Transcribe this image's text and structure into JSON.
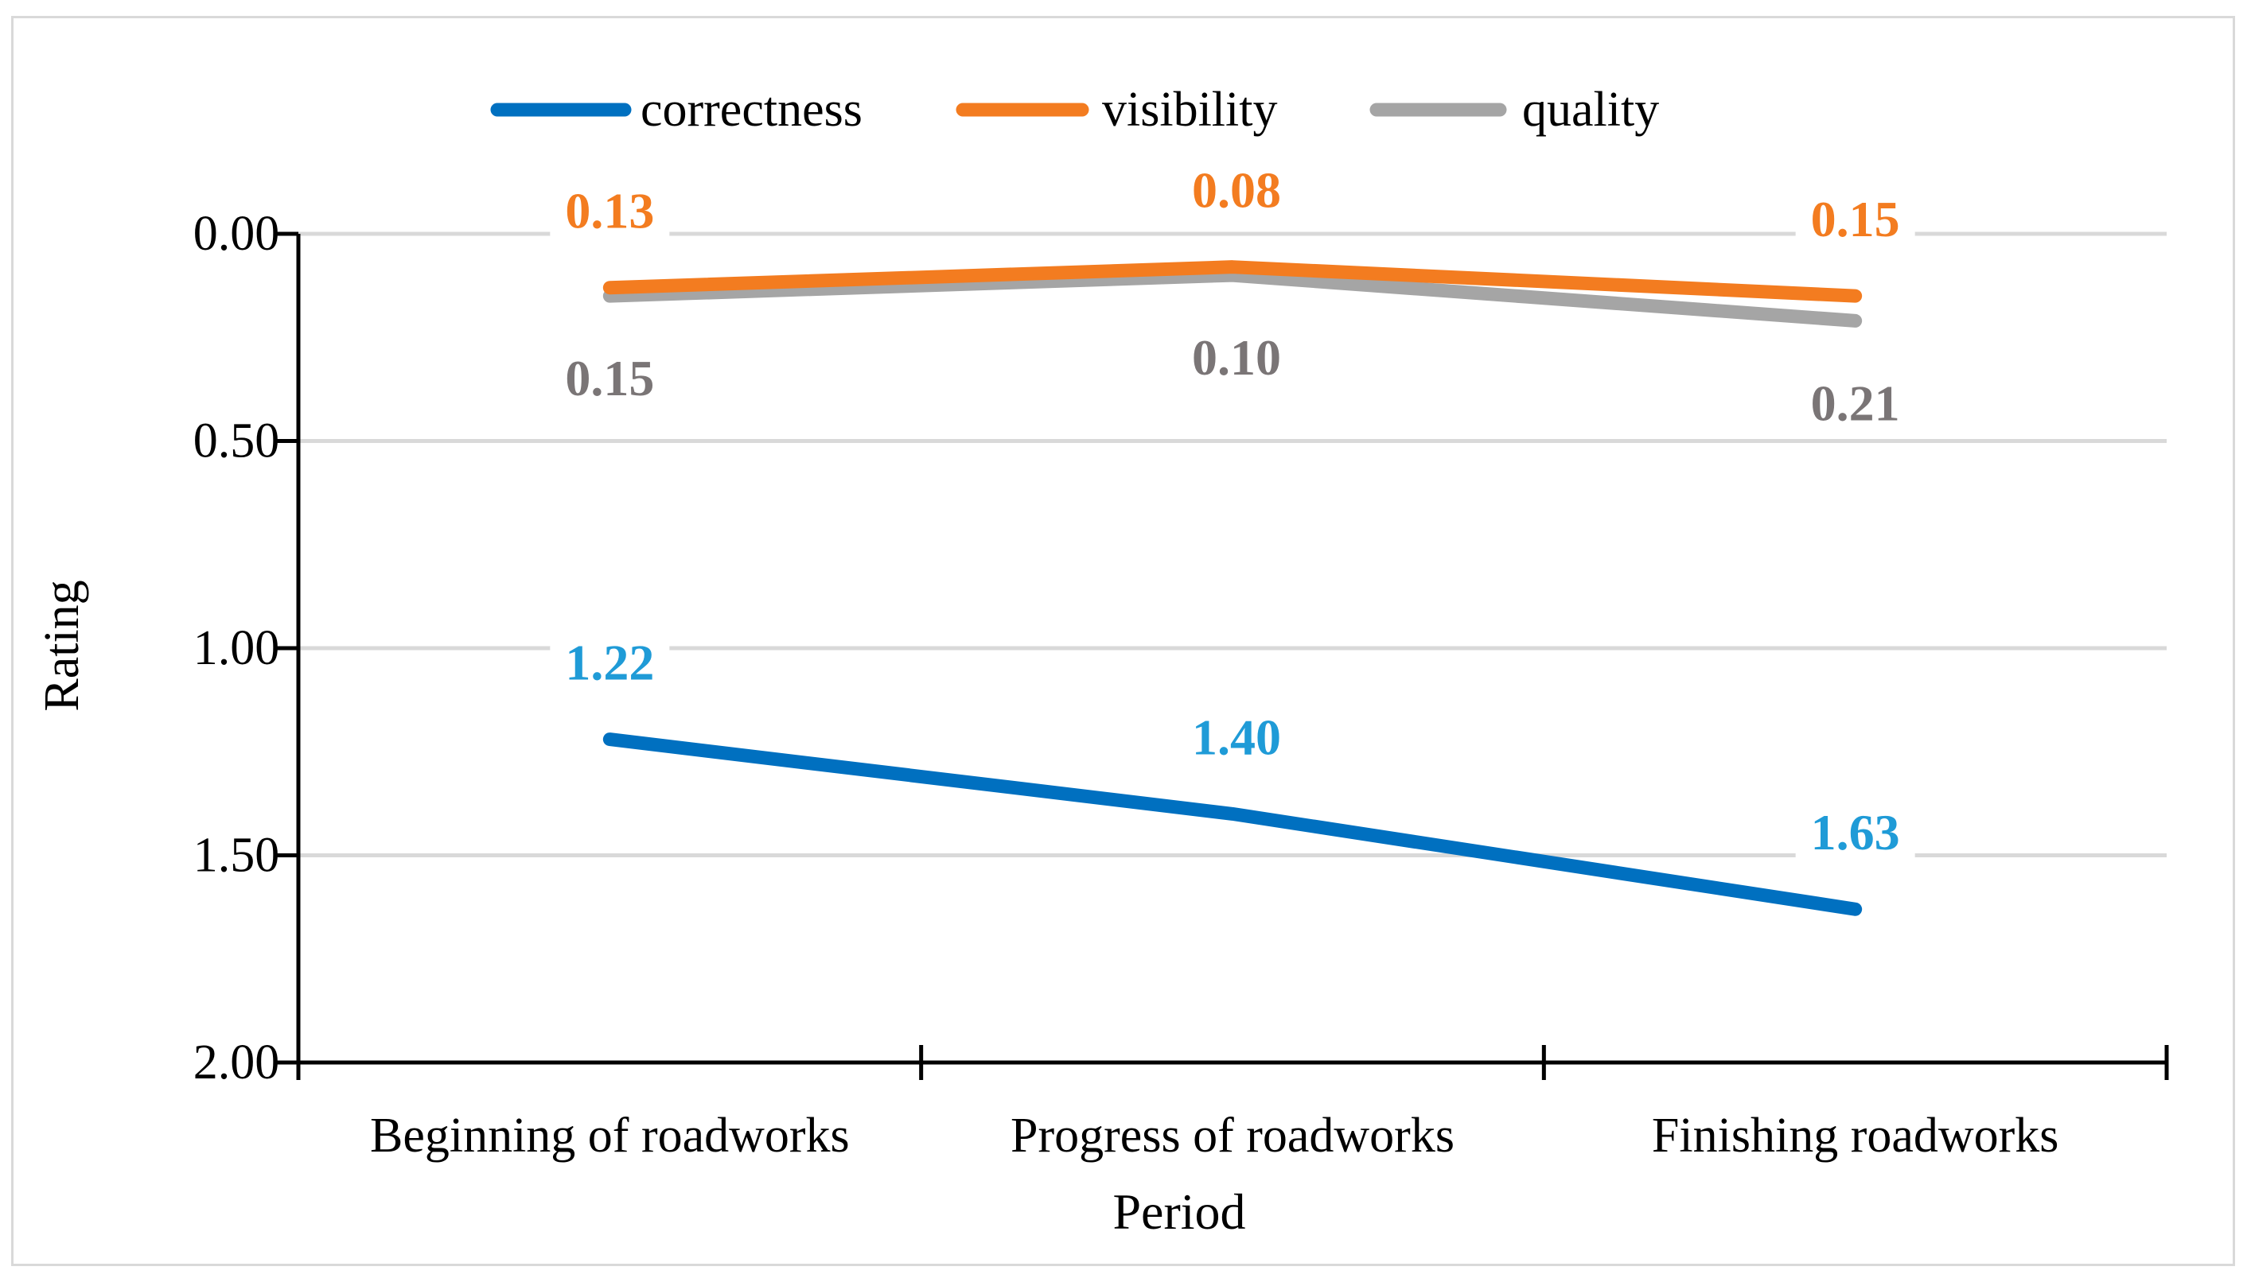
{
  "chart_data": {
    "type": "line",
    "title": "",
    "xlabel": "Period",
    "ylabel": "Rating",
    "categories": [
      "Beginning of roadworks",
      "Progress of roadworks",
      "Finishing roadworks"
    ],
    "ylim": [
      0,
      2
    ],
    "y_inverted": true,
    "yticks": [
      "0.00",
      "0.50",
      "1.00",
      "1.50",
      "2.00"
    ],
    "grid": true,
    "legend_position": "top",
    "series": [
      {
        "name": "correctness",
        "color": "#0070c0",
        "label_color": "#1f9bd7",
        "values": [
          1.22,
          1.4,
          1.63
        ],
        "labels": [
          "1.22",
          "1.40",
          "1.63"
        ],
        "label_side": "above"
      },
      {
        "name": "visibility",
        "color": "#f37c20",
        "label_color": "#f37c20",
        "values": [
          0.13,
          0.08,
          0.15
        ],
        "labels": [
          "0.13",
          "0.08",
          "0.15"
        ],
        "label_side": "above"
      },
      {
        "name": "quality",
        "color": "#a5a5a5",
        "label_color": "#7a7576",
        "values": [
          0.15,
          0.1,
          0.21
        ],
        "labels": [
          "0.15",
          "0.10",
          "0.21"
        ],
        "label_side": "below"
      }
    ]
  }
}
